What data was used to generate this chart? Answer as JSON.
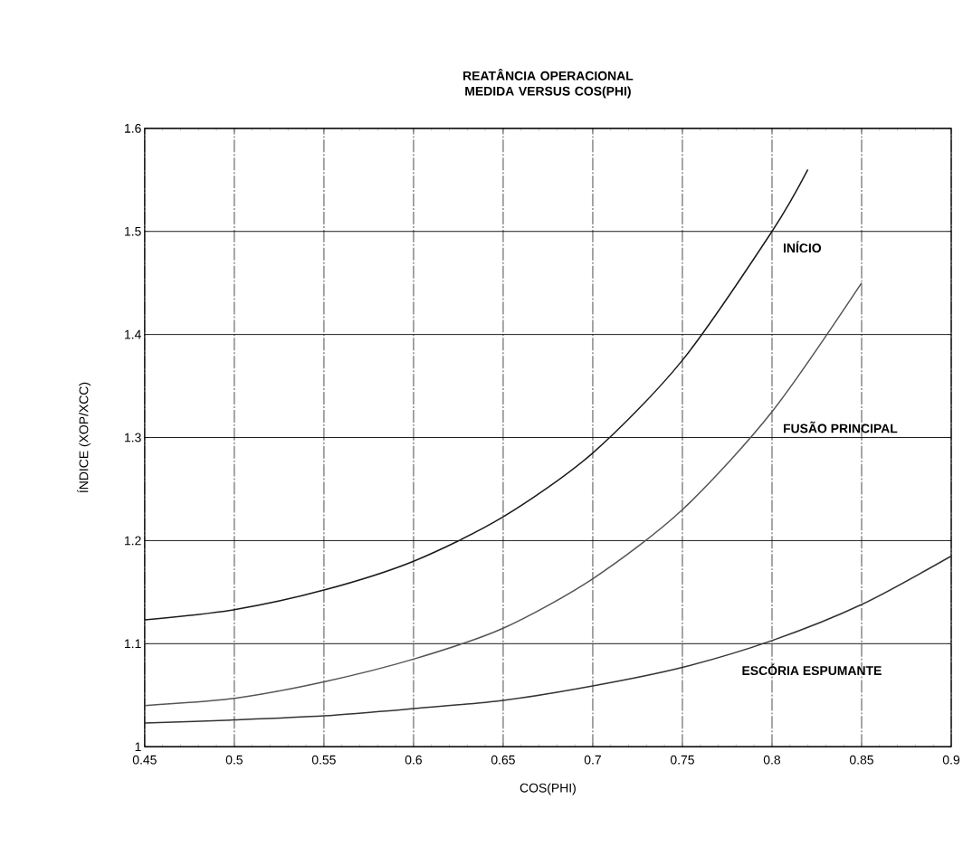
{
  "chart_data": {
    "type": "line",
    "title": "REATÂNCIA OPERACIONAL MEDIDA VERSUS COS(PHI)",
    "xlabel": "COS(PHI)",
    "ylabel": "ÍNDICE (XOP/XCC)",
    "xlim": [
      0.45,
      0.9
    ],
    "ylim": [
      1,
      1.6
    ],
    "xticks": [
      0.45,
      0.5,
      0.55,
      0.6,
      0.65,
      0.7,
      0.75,
      0.8,
      0.85,
      0.9
    ],
    "yticks": [
      1,
      1.1,
      1.2,
      1.3,
      1.4,
      1.5,
      1.6
    ],
    "grid": true,
    "legend": false,
    "marker": "none",
    "line_style": "solid",
    "series": [
      {
        "name": "INÍCIO",
        "color": "#1a1a1a",
        "x": [
          0.45,
          0.5,
          0.55,
          0.6,
          0.65,
          0.7,
          0.75,
          0.8,
          0.82
        ],
        "values": [
          1.123,
          1.133,
          1.152,
          1.18,
          1.223,
          1.285,
          1.375,
          1.5,
          1.56
        ]
      },
      {
        "name": "FUSÃO PRINCIPAL",
        "color": "#555555",
        "x": [
          0.45,
          0.5,
          0.55,
          0.6,
          0.65,
          0.7,
          0.75,
          0.8,
          0.85
        ],
        "values": [
          1.04,
          1.047,
          1.063,
          1.085,
          1.115,
          1.163,
          1.23,
          1.325,
          1.45
        ]
      },
      {
        "name": "ESCÓRIA ESPUMANTE",
        "color": "#333333",
        "x": [
          0.45,
          0.5,
          0.55,
          0.6,
          0.65,
          0.7,
          0.75,
          0.8,
          0.85,
          0.9
        ],
        "values": [
          1.023,
          1.026,
          1.03,
          1.037,
          1.045,
          1.059,
          1.077,
          1.103,
          1.138,
          1.185
        ]
      }
    ]
  }
}
